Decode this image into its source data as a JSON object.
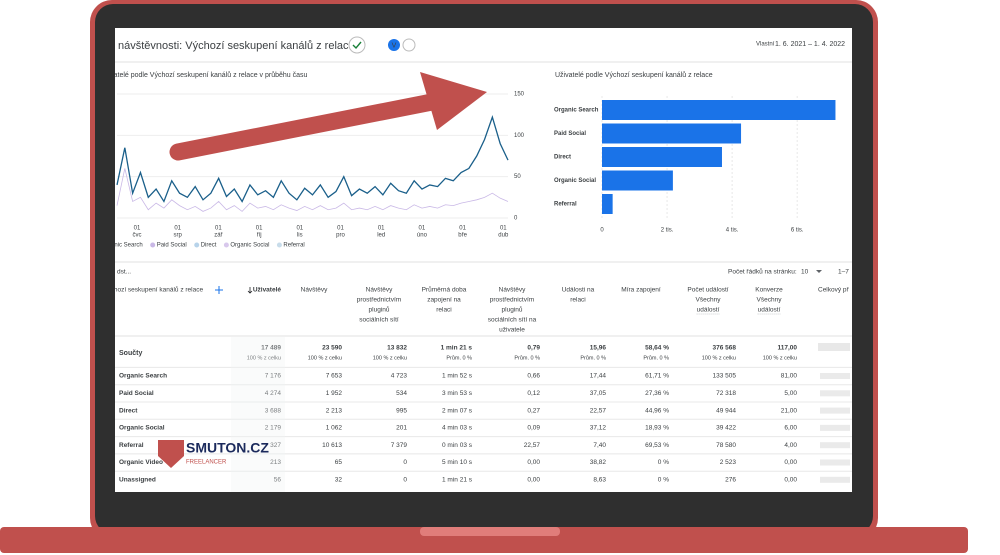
{
  "header": {
    "title": "návštěvnosti: Výchozí seskupení kanálů z relace",
    "badge": "V",
    "date_prefix": "Vlastní",
    "date_range": "1. 6. 2021 – 1. 4. 2022"
  },
  "chart_data": [
    {
      "type": "line",
      "title": "Uživatelé podle Výchozí seskupení kanálů z relace v průběhu času",
      "x_labels": [
        [
          "01",
          "čvc"
        ],
        [
          "01",
          "srp"
        ],
        [
          "01",
          "zář"
        ],
        [
          "01",
          "říj"
        ],
        [
          "01",
          "lis"
        ],
        [
          "01",
          "pro"
        ],
        [
          "01",
          "led"
        ],
        [
          "01",
          "úno"
        ],
        [
          "01",
          "bře"
        ],
        [
          "01",
          "dub"
        ]
      ],
      "ylim": [
        0,
        150
      ],
      "yticks": [
        0,
        50,
        100,
        150
      ],
      "grid": true,
      "series": [
        {
          "name": "Organic Search",
          "color": "#1a5f8a",
          "values": [
            40,
            85,
            30,
            55,
            25,
            35,
            20,
            45,
            30,
            25,
            38,
            22,
            30,
            48,
            26,
            35,
            20,
            40,
            28,
            33,
            25,
            45,
            30,
            22,
            36,
            28,
            40,
            25,
            32,
            50,
            27,
            35,
            30,
            38,
            28,
            42,
            33,
            30,
            45,
            35,
            40,
            38,
            48,
            45,
            55,
            60,
            75,
            95,
            122,
            90,
            70
          ]
        },
        {
          "name": "Paid Social",
          "color": "#c9b8e6",
          "values": [
            15,
            60,
            20,
            25,
            10,
            18,
            12,
            22,
            15,
            10,
            14,
            8,
            12,
            20,
            10,
            15,
            8,
            18,
            12,
            14,
            10,
            16,
            12,
            9,
            14,
            10,
            15,
            10,
            12,
            18,
            10,
            12,
            10,
            14,
            10,
            15,
            12,
            10,
            16,
            12,
            14,
            12,
            16,
            15,
            18,
            20,
            22,
            25,
            30,
            24,
            20
          ]
        },
        {
          "name": "Direct",
          "color": "#b7d3ea"
        },
        {
          "name": "Organic Social",
          "color": "#d8c8ec"
        },
        {
          "name": "Referral",
          "color": "#c8dcea"
        }
      ]
    },
    {
      "type": "bar",
      "orientation": "horizontal",
      "title": "Uživatelé podle Výchozí seskupení kanálů z relace",
      "categories": [
        "Organic Search",
        "Paid Social",
        "Direct",
        "Organic Social",
        "Referral"
      ],
      "values": [
        7176,
        4274,
        3688,
        2179,
        327
      ],
      "color": "#1a73e8",
      "xlim": [
        0,
        7500
      ],
      "xticks": [
        0,
        {
          "value": 2000,
          "label": "2 tis."
        },
        {
          "value": 4000,
          "label": "4 tis."
        },
        {
          "value": 6000,
          "label": "6 tis."
        }
      ],
      "grid": true
    }
  ],
  "table": {
    "search": "dst...",
    "rows_per_page_label": "Počet řádků na stránku:",
    "rows_per_page": "10",
    "range": "1–7",
    "headers": [
      [
        "Výchozí seskupení kanálů z relace"
      ],
      [
        "Uživatelé"
      ],
      [
        "Návštěvy"
      ],
      [
        "Návštěvy",
        "prostřednictvím",
        "pluginů",
        "sociálních sítí"
      ],
      [
        "Průměrná doba",
        "zapojení na",
        "relaci"
      ],
      [
        "Návštěvy",
        "prostřednictvím",
        "pluginů",
        "sociálních sítí na",
        "uživatele"
      ],
      [
        "Události na",
        "relaci"
      ],
      [
        "Míra zapojení"
      ],
      [
        "Počet událostí",
        "Všechny",
        "událostí"
      ],
      [
        "Konverze",
        "Všechny",
        "událostí"
      ],
      [
        "Celkový př"
      ]
    ],
    "totals": {
      "label": "Součty",
      "values": [
        "17 489",
        "23 590",
        "13 832",
        "1 min 21 s",
        "0,79",
        "15,96",
        "58,64 %",
        "376 568",
        "117,00"
      ],
      "subs": [
        "100 % z celku",
        "100 % z celku",
        "100 % z celku",
        "Prům. 0 %",
        "Prům. 0 %",
        "Prům. 0 %",
        "Prům. 0 %",
        "100 % z celku",
        "100 % z celku"
      ]
    },
    "rows": [
      [
        "Organic Search",
        "7 176",
        "7 653",
        "4 723",
        "1 min 52 s",
        "0,66",
        "17,44",
        "61,71 %",
        "133 505",
        "81,00"
      ],
      [
        "Paid Social",
        "4 274",
        "1 952",
        "534",
        "3 min 53 s",
        "0,12",
        "37,05",
        "27,36 %",
        "72 318",
        "5,00"
      ],
      [
        "Direct",
        "3 688",
        "2 213",
        "995",
        "2 min 07 s",
        "0,27",
        "22,57",
        "44,96 %",
        "49 944",
        "21,00"
      ],
      [
        "Organic Social",
        "2 179",
        "1 062",
        "201",
        "4 min 03 s",
        "0,09",
        "37,12",
        "18,93 %",
        "39 422",
        "6,00"
      ],
      [
        "Referral",
        "327",
        "10 613",
        "7 379",
        "0 min 03 s",
        "22,57",
        "7,40",
        "69,53 %",
        "78 580",
        "4,00"
      ],
      [
        "Organic Video",
        "213",
        "65",
        "0",
        "5 min 10 s",
        "0,00",
        "38,82",
        "0 %",
        "2 523",
        "0,00"
      ],
      [
        "Unassigned",
        "56",
        "32",
        "0",
        "1 min 21 s",
        "0,00",
        "8,63",
        "0 %",
        "276",
        "0,00"
      ]
    ]
  },
  "logo": {
    "name": "SMUTON.CZ",
    "tagline": "FREELANCER"
  }
}
